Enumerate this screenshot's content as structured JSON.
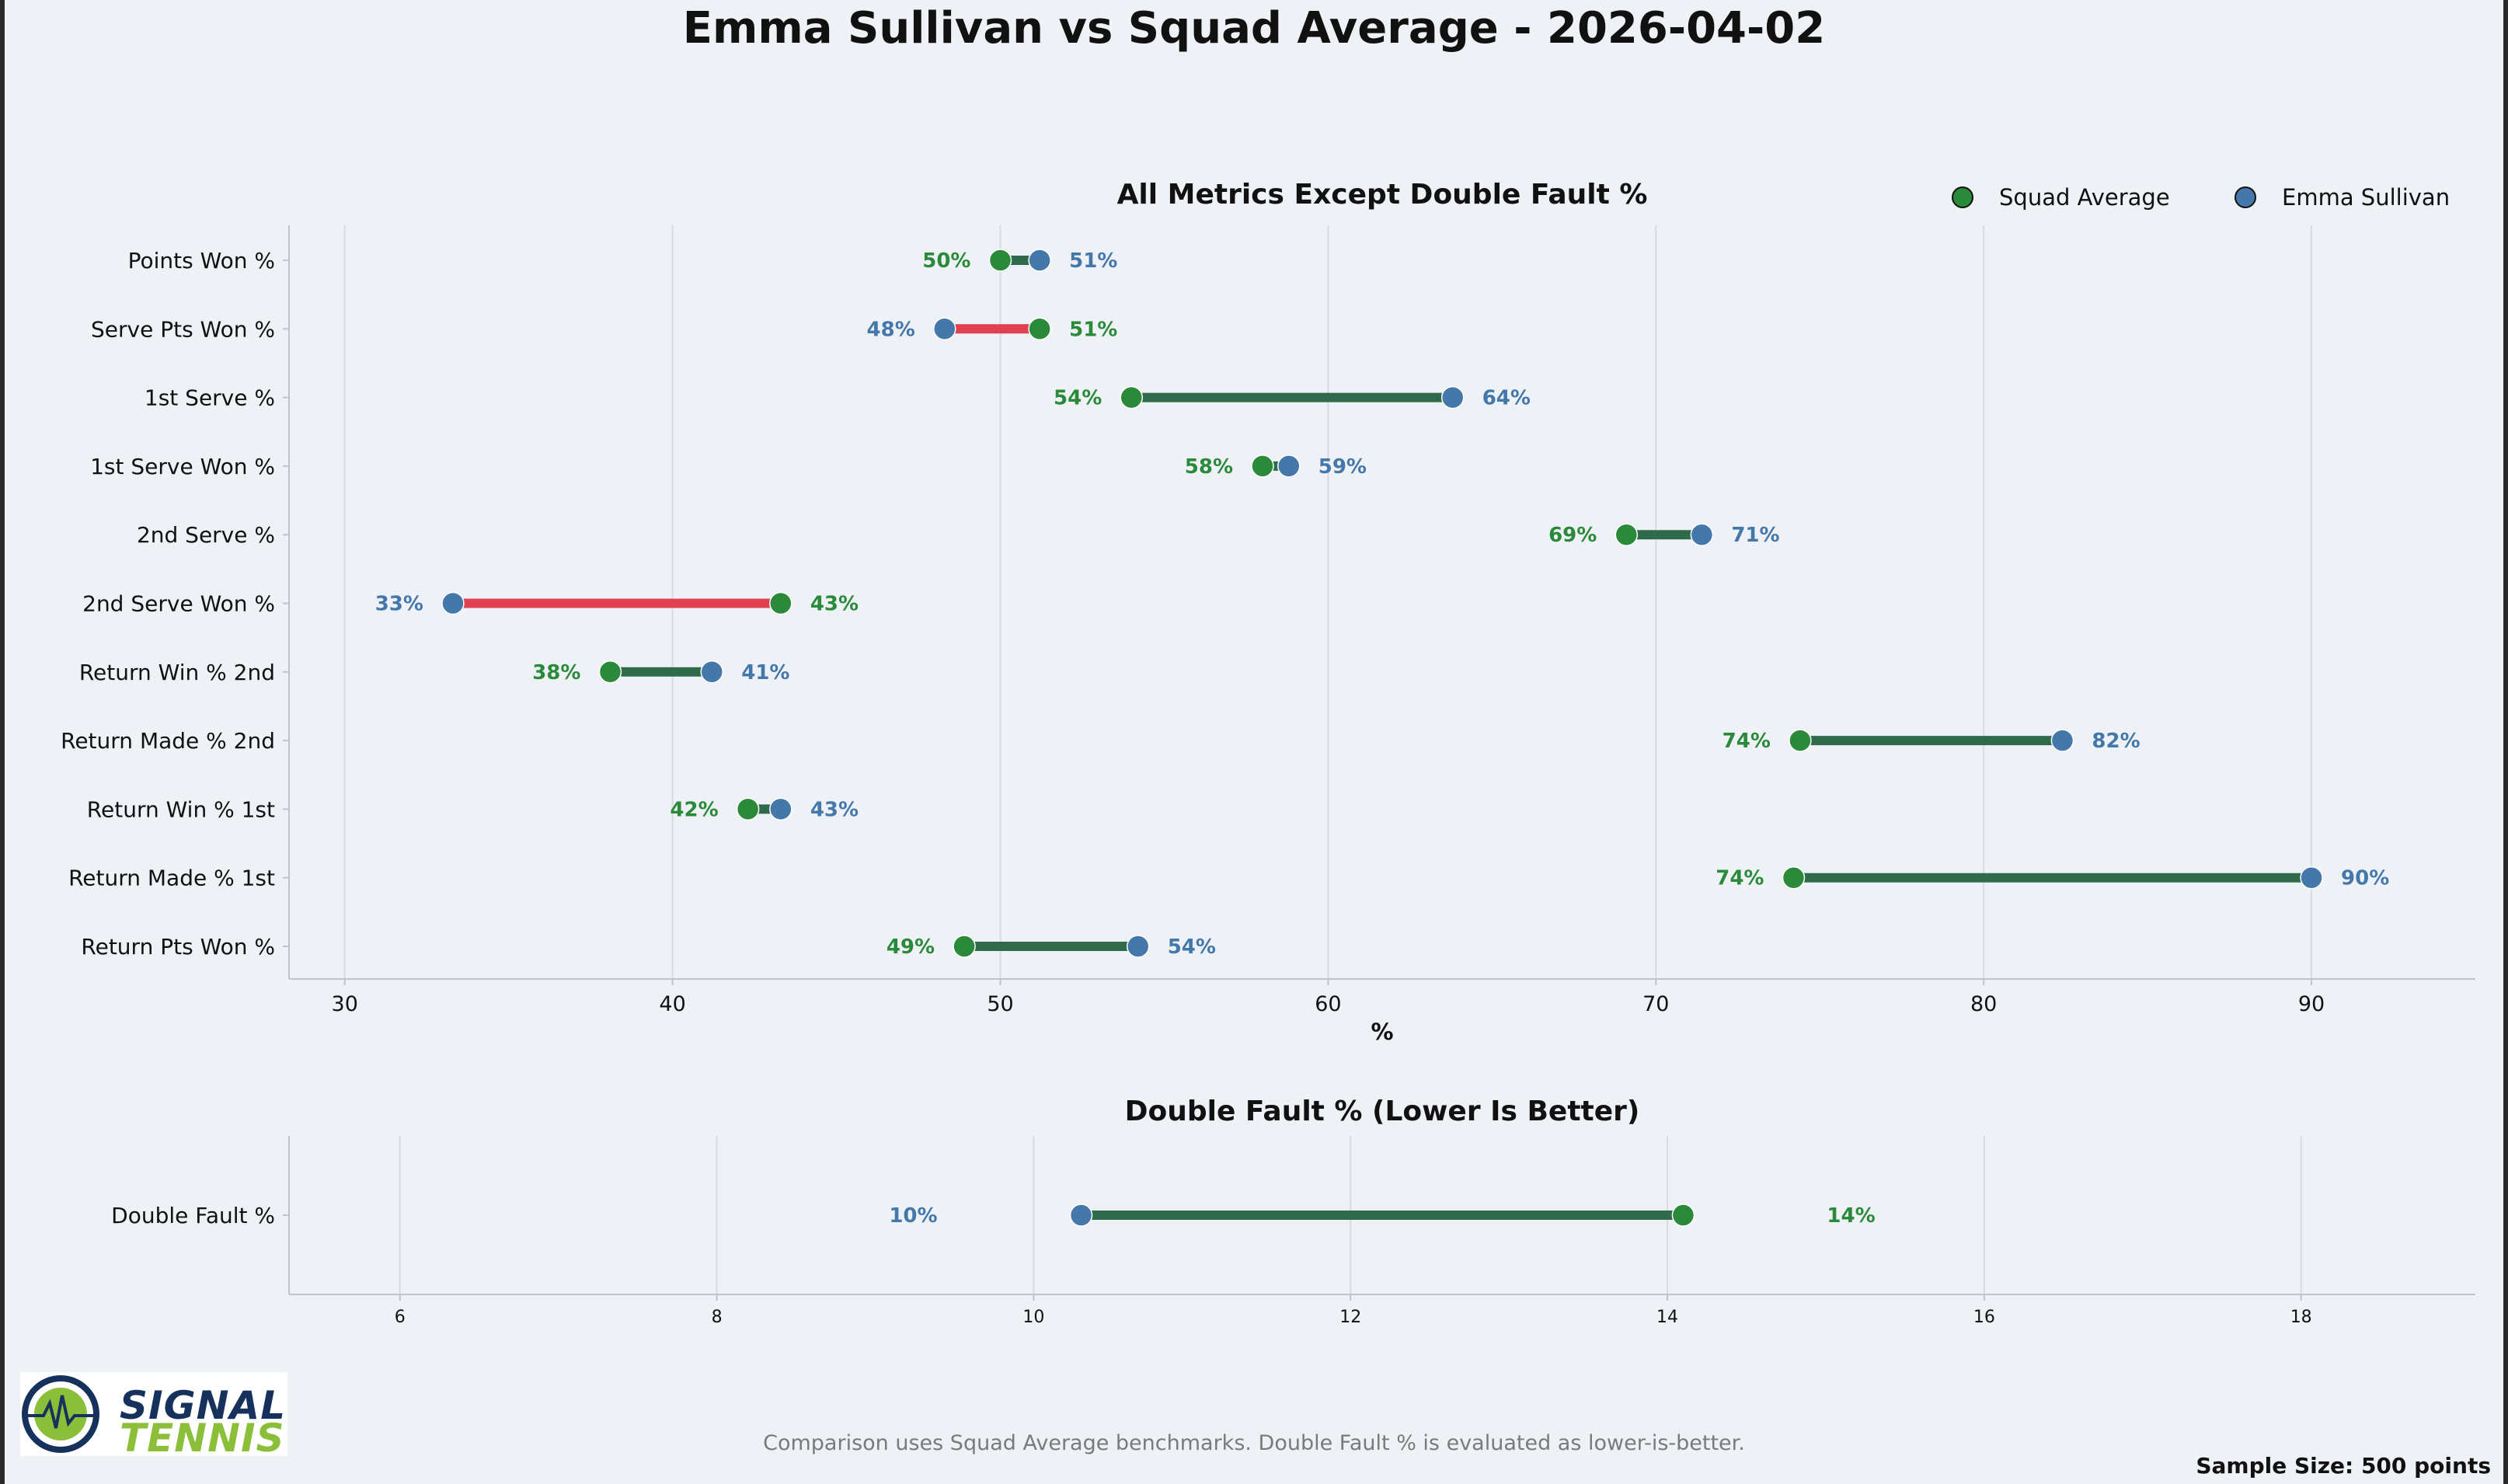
{
  "title": "Emma Sullivan vs Squad Average - 2026-04-02",
  "footnote": "Comparison uses Squad Average benchmarks. Double Fault % is evaluated as lower-is-better.",
  "sample_size": "Sample Size: 500 points",
  "logo": {
    "line1": "SIGNAL",
    "line2": "TENNIS"
  },
  "colors": {
    "squad": "#2a8a3a",
    "player": "#4477aa",
    "better_line": "#2f6b4a",
    "worse_line": "#e04050",
    "grid": "#d8dce2",
    "axis": "#bfc4cc"
  },
  "chart_data": [
    {
      "type": "dumbbell",
      "title": "All Metrics Except Double Fault %",
      "xlabel": "%",
      "xlim": [
        28.3,
        95
      ],
      "xticks": [
        30,
        40,
        50,
        60,
        70,
        80,
        90
      ],
      "legend": {
        "placement": "top-right",
        "entries": [
          "Squad Average",
          "Emma Sullivan"
        ]
      },
      "grid": true,
      "categories": [
        "Points Won %",
        "Serve Pts Won %",
        "1st Serve %",
        "1st Serve Won %",
        "2nd Serve %",
        "2nd Serve Won %",
        "Return Win % 2nd",
        "Return Made % 2nd",
        "Return Win % 1st",
        "Return Made % 1st",
        "Return Pts Won %"
      ],
      "series": [
        {
          "name": "Squad Average",
          "values": [
            50.0,
            51.2,
            54.0,
            58.0,
            69.1,
            43.3,
            38.1,
            74.4,
            42.3,
            74.2,
            48.9
          ]
        },
        {
          "name": "Emma Sullivan",
          "values": [
            51.2,
            48.3,
            63.8,
            58.8,
            71.4,
            33.3,
            41.2,
            82.4,
            43.3,
            90.0,
            54.2
          ]
        }
      ],
      "data_labels": {
        "Squad Average": [
          "50%",
          "51%",
          "54%",
          "58%",
          "69%",
          "43%",
          "38%",
          "74%",
          "42%",
          "74%",
          "49%"
        ],
        "Emma Sullivan": [
          "51%",
          "48%",
          "64%",
          "59%",
          "71%",
          "33%",
          "41%",
          "82%",
          "43%",
          "90%",
          "54%"
        ]
      },
      "lower_is_better": false
    },
    {
      "type": "dumbbell",
      "title": "Double Fault % (Lower Is Better)",
      "xlabel": "",
      "xlim": [
        5.3,
        19.1
      ],
      "xticks": [
        6,
        8,
        10,
        12,
        14,
        16,
        18
      ],
      "grid": true,
      "categories": [
        "Double Fault %"
      ],
      "series": [
        {
          "name": "Squad Average",
          "values": [
            14.1
          ]
        },
        {
          "name": "Emma Sullivan",
          "values": [
            10.3
          ]
        }
      ],
      "data_labels": {
        "Squad Average": [
          "14%"
        ],
        "Emma Sullivan": [
          "10%"
        ]
      },
      "lower_is_better": true
    }
  ]
}
